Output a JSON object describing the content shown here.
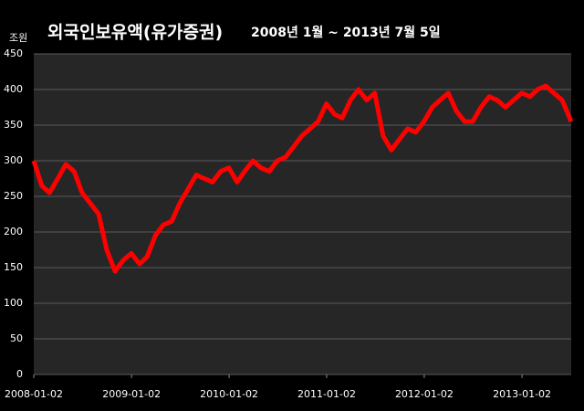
{
  "chart_data": {
    "type": "line",
    "title": "외국인보유액(유가증권)",
    "subtitle": "2008년 1월 ~ 2013년 7월 5일",
    "y_label": "조원",
    "x": [
      "2008-01-02",
      "2008-02-01",
      "2008-03-01",
      "2008-04-01",
      "2008-05-01",
      "2008-06-01",
      "2008-07-01",
      "2008-08-01",
      "2008-09-01",
      "2008-10-01",
      "2008-11-01",
      "2008-12-01",
      "2009-01-01",
      "2009-02-01",
      "2009-03-01",
      "2009-04-01",
      "2009-05-01",
      "2009-06-01",
      "2009-07-01",
      "2009-08-01",
      "2009-09-01",
      "2009-10-01",
      "2009-11-01",
      "2009-12-01",
      "2010-01-01",
      "2010-02-01",
      "2010-03-01",
      "2010-04-01",
      "2010-05-01",
      "2010-06-01",
      "2010-07-01",
      "2010-08-01",
      "2010-09-01",
      "2010-10-01",
      "2010-11-01",
      "2010-12-01",
      "2011-01-01",
      "2011-02-01",
      "2011-03-01",
      "2011-04-01",
      "2011-05-01",
      "2011-06-01",
      "2011-07-01",
      "2011-08-01",
      "2011-09-01",
      "2011-10-01",
      "2011-11-01",
      "2011-12-01",
      "2012-01-01",
      "2012-02-01",
      "2012-03-01",
      "2012-04-01",
      "2012-05-01",
      "2012-06-01",
      "2012-07-01",
      "2012-08-01",
      "2012-09-01",
      "2012-10-01",
      "2012-11-01",
      "2012-12-01",
      "2013-01-01",
      "2013-02-01",
      "2013-03-01",
      "2013-04-01",
      "2013-05-01",
      "2013-06-01",
      "2013-07-05"
    ],
    "series": [
      {
        "name": "외국인보유액",
        "color": "#ff0000",
        "values": [
          300,
          265,
          255,
          275,
          295,
          285,
          255,
          240,
          225,
          175,
          145,
          160,
          170,
          155,
          165,
          195,
          210,
          215,
          240,
          260,
          280,
          275,
          270,
          285,
          290,
          270,
          285,
          300,
          290,
          285,
          300,
          305,
          320,
          335,
          345,
          355,
          380,
          365,
          360,
          385,
          400,
          385,
          395,
          335,
          315,
          330,
          345,
          340,
          355,
          375,
          385,
          395,
          370,
          355,
          355,
          375,
          390,
          385,
          375,
          385,
          395,
          390,
          400,
          405,
          395,
          385,
          355
        ]
      }
    ],
    "xlim": [
      "2008-01-02",
      "2013-07-05"
    ],
    "xticks": [
      "2008-01-02",
      "2009-01-02",
      "2010-01-02",
      "2011-01-02",
      "2012-01-02",
      "2013-01-02"
    ],
    "ylim": [
      0,
      450
    ],
    "yticks": [
      0,
      50,
      100,
      150,
      200,
      250,
      300,
      350,
      400,
      450
    ],
    "grid": true
  }
}
